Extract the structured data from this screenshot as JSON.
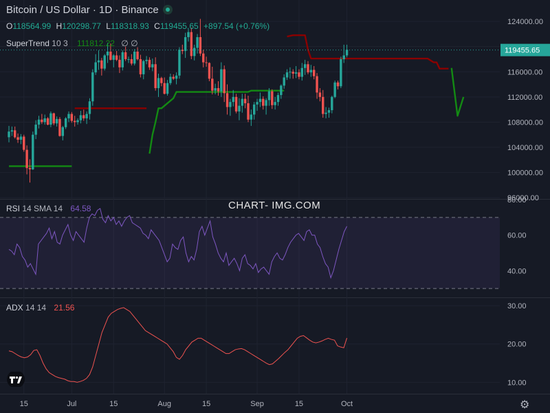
{
  "header": {
    "title": "Bitcoin / US Dollar · 1D · Binance",
    "ohlc": [
      {
        "key": "O",
        "value": "118564.99"
      },
      {
        "key": "H",
        "value": "120298.77"
      },
      {
        "key": "L",
        "value": "118318.93"
      },
      {
        "key": "C",
        "value": "119455.65"
      },
      {
        "key": "",
        "value": "+897.54 (+0.76%)"
      }
    ]
  },
  "supertrend": {
    "label": "SuperTrend",
    "params": "10 3",
    "value": "111812.22",
    "icons": "∅ ∅"
  },
  "rsi": {
    "label": "RSI",
    "params": "14 SMA 14",
    "value": "64.58"
  },
  "adx": {
    "label": "ADX",
    "params": "14 14",
    "value": "21.56"
  },
  "watermark": "CHART- IMG.COM",
  "colors": {
    "background": "#161a25",
    "up": "#26a69a",
    "down": "#ef5350",
    "supertrend_down": "#8b0000",
    "supertrend_up": "#138a13",
    "rsi_line": "#7e57c2",
    "adx_line": "#ef5350",
    "price_label_bg": "#26a69a"
  },
  "chart_data": [
    {
      "type": "candlestick",
      "title": "Bitcoin / US Dollar · 1D · Binance",
      "y_ticks": [
        "124000.00",
        "120000.00",
        "116000.00",
        "112000.00",
        "108000.00",
        "104000.00",
        "100000.00",
        "96000.00"
      ],
      "ylim": [
        95800,
        127400
      ],
      "x_ticks": [
        {
          "label": "15",
          "index": 5
        },
        {
          "label": "Jul",
          "index": 21
        },
        {
          "label": "15",
          "index": 35
        },
        {
          "label": "Aug",
          "index": 52
        },
        {
          "label": "15",
          "index": 66
        },
        {
          "label": "Sep",
          "index": 83
        },
        {
          "label": "15",
          "index": 97
        },
        {
          "label": "Oct",
          "index": 113
        }
      ],
      "last_price": "119455.65",
      "candles": [
        [
          105600,
          107400,
          104800,
          106500
        ],
        [
          106500,
          107300,
          105800,
          106700
        ],
        [
          106700,
          107300,
          105400,
          105600
        ],
        [
          105600,
          106200,
          104700,
          105200
        ],
        [
          105200,
          106100,
          104500,
          105700
        ],
        [
          105700,
          106000,
          103300,
          103600
        ],
        [
          103600,
          104300,
          99700,
          100700
        ],
        [
          100700,
          102100,
          98400,
          100500
        ],
        [
          100500,
          106500,
          100400,
          106000
        ],
        [
          106000,
          108300,
          105300,
          107600
        ],
        [
          107600,
          109000,
          107000,
          108400
        ],
        [
          108400,
          109300,
          107700,
          108000
        ],
        [
          108000,
          109200,
          107600,
          108600
        ],
        [
          108600,
          108800,
          107500,
          107600
        ],
        [
          107600,
          109700,
          107200,
          109400
        ],
        [
          109400,
          109500,
          107500,
          107800
        ],
        [
          107800,
          108900,
          107300,
          108500
        ],
        [
          108500,
          108800,
          105700,
          105800
        ],
        [
          105800,
          107400,
          105100,
          107200
        ],
        [
          107200,
          108800,
          106900,
          108600
        ],
        [
          108600,
          109700,
          108000,
          109300
        ],
        [
          109300,
          109600,
          107900,
          108200
        ],
        [
          108200,
          109000,
          107300,
          108000
        ],
        [
          108000,
          108600,
          107600,
          108300
        ],
        [
          108300,
          109800,
          107800,
          109100
        ],
        [
          109100,
          110000,
          108200,
          108600
        ],
        [
          108600,
          109700,
          107700,
          109300
        ],
        [
          109300,
          111800,
          108400,
          111300
        ],
        [
          111300,
          116400,
          110600,
          115900
        ],
        [
          115900,
          118800,
          115500,
          117500
        ],
        [
          117500,
          119400,
          116300,
          117800
        ],
        [
          117800,
          118200,
          115400,
          116500
        ],
        [
          116500,
          118800,
          116200,
          118600
        ],
        [
          118600,
          120600,
          117400,
          119200
        ],
        [
          119200,
          120500,
          117800,
          117900
        ],
        [
          117900,
          118800,
          116700,
          118600
        ],
        [
          118600,
          119300,
          117700,
          117900
        ],
        [
          117900,
          118600,
          115800,
          116700
        ],
        [
          116700,
          119400,
          116200,
          119100
        ],
        [
          119100,
          120000,
          117700,
          118000
        ],
        [
          118000,
          118400,
          117400,
          118000
        ],
        [
          118000,
          118800,
          117000,
          117300
        ],
        [
          117300,
          119600,
          117000,
          119200
        ],
        [
          119200,
          119900,
          117800,
          118000
        ],
        [
          118000,
          118700,
          115100,
          115600
        ],
        [
          115600,
          117900,
          114800,
          117700
        ],
        [
          117700,
          118500,
          117200,
          117900
        ],
        [
          117900,
          118300,
          116300,
          116700
        ],
        [
          116700,
          118100,
          116100,
          117200
        ],
        [
          117200,
          118300,
          113000,
          113400
        ],
        [
          113400,
          115700,
          112000,
          115000
        ],
        [
          115000,
          115200,
          113700,
          114200
        ],
        [
          114200,
          115100,
          112400,
          112500
        ],
        [
          112500,
          114700,
          112200,
          114200
        ],
        [
          114200,
          115700,
          113900,
          115200
        ],
        [
          115200,
          115600,
          114700,
          114900
        ],
        [
          114900,
          115900,
          114000,
          115400
        ],
        [
          115400,
          119900,
          114900,
          119500
        ],
        [
          119500,
          120300,
          118800,
          119300
        ],
        [
          119300,
          122200,
          118200,
          121500
        ],
        [
          121500,
          122800,
          120800,
          122300
        ],
        [
          122300,
          123000,
          118000,
          118500
        ],
        [
          118500,
          120300,
          117800,
          119800
        ],
        [
          119800,
          122000,
          118900,
          121500
        ],
        [
          121500,
          124400,
          118500,
          118900
        ],
        [
          118900,
          119500,
          116700,
          117500
        ],
        [
          117500,
          118400,
          116800,
          117400
        ],
        [
          117400,
          117500,
          114500,
          114900
        ],
        [
          114900,
          116800,
          112400,
          113000
        ],
        [
          113000,
          114100,
          112400,
          113400
        ],
        [
          113400,
          114500,
          112200,
          112900
        ],
        [
          112900,
          117500,
          112000,
          116400
        ],
        [
          116400,
          117000,
          111200,
          112600
        ],
        [
          112600,
          114000,
          109200,
          110400
        ],
        [
          110400,
          111700,
          109000,
          111200
        ],
        [
          111200,
          113100,
          110500,
          112000
        ],
        [
          112000,
          112500,
          109400,
          109700
        ],
        [
          109700,
          111800,
          108300,
          110600
        ],
        [
          110600,
          112500,
          109500,
          111700
        ],
        [
          111700,
          112500,
          110200,
          111000
        ],
        [
          111000,
          112200,
          108000,
          108400
        ],
        [
          108400,
          110000,
          107400,
          109200
        ],
        [
          109200,
          111200,
          108400,
          110800
        ],
        [
          110800,
          111700,
          109800,
          111200
        ],
        [
          111200,
          112700,
          110400,
          111700
        ],
        [
          111700,
          112100,
          110000,
          110600
        ],
        [
          110600,
          111800,
          109200,
          111500
        ],
        [
          111500,
          113400,
          110600,
          112900
        ],
        [
          112900,
          113200,
          110100,
          110700
        ],
        [
          110700,
          112000,
          110000,
          111200
        ],
        [
          111200,
          112700,
          110600,
          112300
        ],
        [
          112300,
          114000,
          111700,
          113800
        ],
        [
          113800,
          115600,
          113300,
          115100
        ],
        [
          115100,
          116400,
          114700,
          115900
        ],
        [
          115900,
          116700,
          114900,
          116000
        ],
        [
          116000,
          116400,
          114900,
          115700
        ],
        [
          115700,
          116900,
          115000,
          115900
        ],
        [
          115900,
          116400,
          114800,
          115200
        ],
        [
          115200,
          117400,
          114600,
          116600
        ],
        [
          116600,
          117900,
          115500,
          117200
        ],
        [
          117200,
          117700,
          115600,
          115900
        ],
        [
          115900,
          117100,
          115200,
          116300
        ],
        [
          116300,
          116900,
          114800,
          115300
        ],
        [
          115300,
          115800,
          111700,
          112700
        ],
        [
          112700,
          113400,
          111300,
          112000
        ],
        [
          112000,
          113100,
          108700,
          109300
        ],
        [
          109300,
          110400,
          108600,
          109500
        ],
        [
          109500,
          110300,
          108700,
          109900
        ],
        [
          109900,
          112200,
          109400,
          112000
        ],
        [
          112000,
          114600,
          111800,
          114300
        ],
        [
          114300,
          114600,
          113200,
          113700
        ],
        [
          113700,
          118400,
          113400,
          118000
        ],
        [
          118000,
          120300,
          117400,
          118600
        ],
        [
          118600,
          120300,
          118300,
          119500
        ]
      ]
    },
    {
      "type": "line",
      "name": "SuperTrend 10 3",
      "ylim": [
        95800,
        127400
      ],
      "series": [
        {
          "side": "up",
          "values": [
            [
              0,
              101000
            ],
            [
              21,
              101000
            ]
          ]
        },
        {
          "side": "down",
          "values": [
            [
              22,
              110200
            ],
            [
              46,
              110200
            ]
          ]
        },
        {
          "side": "up",
          "values": [
            [
              47,
              103000
            ],
            [
              48,
              106000
            ],
            [
              49,
              108000
            ],
            [
              50,
              110200
            ],
            [
              51,
              110200
            ],
            [
              55,
              111800
            ],
            [
              56,
              112800
            ],
            [
              57,
              112800
            ],
            [
              80,
              112800
            ],
            [
              81,
              113000
            ],
            [
              92,
              113000
            ]
          ]
        },
        {
          "side": "down",
          "values": [
            [
              93,
              121600
            ],
            [
              95,
              121800
            ],
            [
              99,
              121800
            ],
            [
              100,
              119500
            ],
            [
              101,
              118100
            ],
            [
              140,
              118100
            ],
            [
              142,
              117500
            ],
            [
              143,
              117500
            ],
            [
              144,
              116500
            ],
            [
              147,
              116500
            ]
          ]
        },
        {
          "side": "up",
          "values": [
            [
              148,
              116600
            ],
            [
              150,
              109000
            ],
            [
              152,
              112000
            ]
          ]
        }
      ]
    },
    {
      "type": "line",
      "title": "RSI 14 SMA 14",
      "y_ticks": [
        "80.00",
        "60.00",
        "40.00"
      ],
      "ylim": [
        25,
        80
      ],
      "bands": [
        70,
        30
      ],
      "values": [
        52,
        51,
        49,
        55,
        53,
        48,
        46,
        42,
        44,
        41,
        38,
        55,
        57,
        59,
        61,
        64,
        58,
        62,
        56,
        55,
        60,
        63,
        66,
        60,
        57,
        62,
        60,
        58,
        56,
        64,
        70,
        72,
        71,
        74,
        75,
        69,
        67,
        71,
        68,
        70,
        66,
        68,
        65,
        68,
        70,
        71,
        67,
        66,
        65,
        64,
        61,
        60,
        58,
        63,
        61,
        59,
        57,
        53,
        49,
        45,
        47,
        55,
        53,
        52,
        57,
        59,
        50,
        45,
        48,
        46,
        52,
        62,
        65,
        60,
        64,
        68,
        59,
        55,
        50,
        47,
        45,
        50,
        43,
        45,
        47,
        44,
        40,
        47,
        49,
        44,
        43,
        41,
        44,
        39,
        41,
        42,
        40,
        38,
        45,
        48,
        50,
        47,
        46,
        49,
        53,
        56,
        58,
        60,
        61,
        59,
        57,
        62,
        63,
        60,
        60,
        55,
        53,
        48,
        44,
        42,
        36,
        40,
        46,
        52,
        57,
        62,
        65
      ],
      "last_value": "64.58"
    },
    {
      "type": "line",
      "title": "ADX 14 14",
      "y_ticks": [
        "30.00",
        "20.00",
        "10.00"
      ],
      "ylim": [
        7,
        32
      ],
      "values": [
        18.2,
        18.0,
        17.5,
        17.0,
        16.6,
        16.4,
        16.6,
        17.2,
        18.3,
        18.5,
        17.0,
        15.0,
        13.5,
        12.5,
        12.0,
        11.5,
        11.2,
        11.0,
        10.8,
        10.4,
        10.2,
        10.2,
        10.0,
        10.2,
        10.5,
        11.0,
        12.0,
        14.0,
        17.0,
        20.0,
        23.0,
        25.0,
        27.0,
        28.0,
        28.5,
        29.0,
        29.3,
        29.5,
        29.0,
        28.5,
        27.5,
        26.5,
        25.5,
        24.5,
        23.5,
        23.0,
        22.5,
        22.0,
        21.5,
        21.0,
        20.5,
        20.0,
        19.0,
        18.0,
        16.5,
        16.0,
        17.0,
        18.5,
        19.5,
        20.5,
        21.0,
        21.5,
        21.5,
        21.0,
        20.5,
        20.0,
        19.5,
        19.0,
        18.5,
        18.0,
        17.5,
        17.5,
        18.0,
        18.5,
        18.7,
        18.8,
        18.5,
        18.0,
        17.5,
        17.0,
        16.5,
        16.0,
        15.5,
        15.0,
        14.6,
        14.8,
        15.5,
        16.2,
        17.0,
        17.8,
        18.5,
        19.5,
        20.5,
        21.5,
        22.0,
        22.2,
        21.6,
        21.0,
        20.5,
        20.3,
        20.5,
        20.8,
        21.2,
        21.5,
        21.2,
        21.0,
        19.5,
        19.2,
        19.0,
        21.56
      ],
      "last_value": "21.56"
    }
  ]
}
